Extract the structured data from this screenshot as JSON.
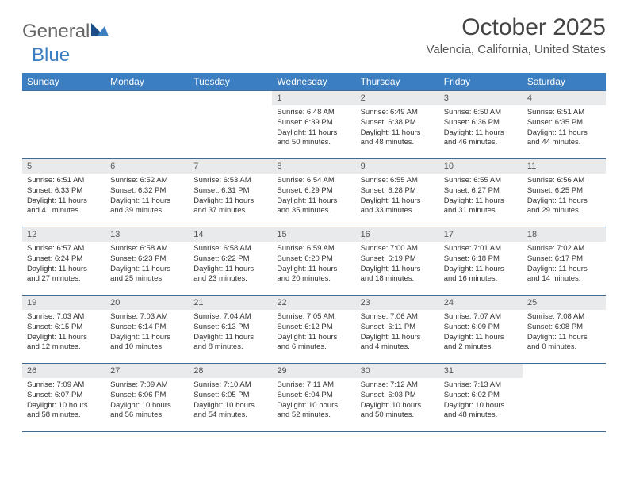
{
  "brand": {
    "text_general": "General",
    "text_blue": "Blue"
  },
  "colors": {
    "header_bg": "#3b7ec1",
    "header_text": "#ffffff",
    "daynum_bg": "#e9eaeb",
    "rule": "#426b93",
    "brand_gray": "#666666",
    "brand_blue": "#3b7ec1",
    "page_bg": "#ffffff"
  },
  "title": "October 2025",
  "location": "Valencia, California, United States",
  "day_headers": [
    "Sunday",
    "Monday",
    "Tuesday",
    "Wednesday",
    "Thursday",
    "Friday",
    "Saturday"
  ],
  "weeks": [
    [
      {
        "empty": true
      },
      {
        "empty": true
      },
      {
        "empty": true
      },
      {
        "day": "1",
        "sunrise": "6:48 AM",
        "sunset": "6:39 PM",
        "daylight": "11 hours and 50 minutes."
      },
      {
        "day": "2",
        "sunrise": "6:49 AM",
        "sunset": "6:38 PM",
        "daylight": "11 hours and 48 minutes."
      },
      {
        "day": "3",
        "sunrise": "6:50 AM",
        "sunset": "6:36 PM",
        "daylight": "11 hours and 46 minutes."
      },
      {
        "day": "4",
        "sunrise": "6:51 AM",
        "sunset": "6:35 PM",
        "daylight": "11 hours and 44 minutes."
      }
    ],
    [
      {
        "day": "5",
        "sunrise": "6:51 AM",
        "sunset": "6:33 PM",
        "daylight": "11 hours and 41 minutes."
      },
      {
        "day": "6",
        "sunrise": "6:52 AM",
        "sunset": "6:32 PM",
        "daylight": "11 hours and 39 minutes."
      },
      {
        "day": "7",
        "sunrise": "6:53 AM",
        "sunset": "6:31 PM",
        "daylight": "11 hours and 37 minutes."
      },
      {
        "day": "8",
        "sunrise": "6:54 AM",
        "sunset": "6:29 PM",
        "daylight": "11 hours and 35 minutes."
      },
      {
        "day": "9",
        "sunrise": "6:55 AM",
        "sunset": "6:28 PM",
        "daylight": "11 hours and 33 minutes."
      },
      {
        "day": "10",
        "sunrise": "6:55 AM",
        "sunset": "6:27 PM",
        "daylight": "11 hours and 31 minutes."
      },
      {
        "day": "11",
        "sunrise": "6:56 AM",
        "sunset": "6:25 PM",
        "daylight": "11 hours and 29 minutes."
      }
    ],
    [
      {
        "day": "12",
        "sunrise": "6:57 AM",
        "sunset": "6:24 PM",
        "daylight": "11 hours and 27 minutes."
      },
      {
        "day": "13",
        "sunrise": "6:58 AM",
        "sunset": "6:23 PM",
        "daylight": "11 hours and 25 minutes."
      },
      {
        "day": "14",
        "sunrise": "6:58 AM",
        "sunset": "6:22 PM",
        "daylight": "11 hours and 23 minutes."
      },
      {
        "day": "15",
        "sunrise": "6:59 AM",
        "sunset": "6:20 PM",
        "daylight": "11 hours and 20 minutes."
      },
      {
        "day": "16",
        "sunrise": "7:00 AM",
        "sunset": "6:19 PM",
        "daylight": "11 hours and 18 minutes."
      },
      {
        "day": "17",
        "sunrise": "7:01 AM",
        "sunset": "6:18 PM",
        "daylight": "11 hours and 16 minutes."
      },
      {
        "day": "18",
        "sunrise": "7:02 AM",
        "sunset": "6:17 PM",
        "daylight": "11 hours and 14 minutes."
      }
    ],
    [
      {
        "day": "19",
        "sunrise": "7:03 AM",
        "sunset": "6:15 PM",
        "daylight": "11 hours and 12 minutes."
      },
      {
        "day": "20",
        "sunrise": "7:03 AM",
        "sunset": "6:14 PM",
        "daylight": "11 hours and 10 minutes."
      },
      {
        "day": "21",
        "sunrise": "7:04 AM",
        "sunset": "6:13 PM",
        "daylight": "11 hours and 8 minutes."
      },
      {
        "day": "22",
        "sunrise": "7:05 AM",
        "sunset": "6:12 PM",
        "daylight": "11 hours and 6 minutes."
      },
      {
        "day": "23",
        "sunrise": "7:06 AM",
        "sunset": "6:11 PM",
        "daylight": "11 hours and 4 minutes."
      },
      {
        "day": "24",
        "sunrise": "7:07 AM",
        "sunset": "6:09 PM",
        "daylight": "11 hours and 2 minutes."
      },
      {
        "day": "25",
        "sunrise": "7:08 AM",
        "sunset": "6:08 PM",
        "daylight": "11 hours and 0 minutes."
      }
    ],
    [
      {
        "day": "26",
        "sunrise": "7:09 AM",
        "sunset": "6:07 PM",
        "daylight": "10 hours and 58 minutes."
      },
      {
        "day": "27",
        "sunrise": "7:09 AM",
        "sunset": "6:06 PM",
        "daylight": "10 hours and 56 minutes."
      },
      {
        "day": "28",
        "sunrise": "7:10 AM",
        "sunset": "6:05 PM",
        "daylight": "10 hours and 54 minutes."
      },
      {
        "day": "29",
        "sunrise": "7:11 AM",
        "sunset": "6:04 PM",
        "daylight": "10 hours and 52 minutes."
      },
      {
        "day": "30",
        "sunrise": "7:12 AM",
        "sunset": "6:03 PM",
        "daylight": "10 hours and 50 minutes."
      },
      {
        "day": "31",
        "sunrise": "7:13 AM",
        "sunset": "6:02 PM",
        "daylight": "10 hours and 48 minutes."
      },
      {
        "empty": true
      }
    ]
  ],
  "labels": {
    "sunrise": "Sunrise:",
    "sunset": "Sunset:",
    "daylight": "Daylight:"
  }
}
